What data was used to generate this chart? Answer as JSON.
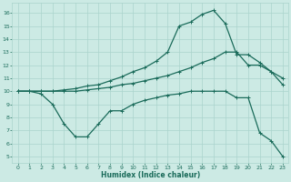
{
  "xlabel": "Humidex (Indice chaleur)",
  "bg_color": "#cceae4",
  "grid_color": "#aad4cc",
  "line_color": "#1a6b5a",
  "xlim": [
    -0.5,
    23.5
  ],
  "ylim": [
    4.5,
    16.8
  ],
  "yticks": [
    5,
    6,
    7,
    8,
    9,
    10,
    11,
    12,
    13,
    14,
    15,
    16
  ],
  "xticks": [
    0,
    1,
    2,
    3,
    4,
    5,
    6,
    7,
    8,
    9,
    10,
    11,
    12,
    13,
    14,
    15,
    16,
    17,
    18,
    19,
    20,
    21,
    22,
    23
  ],
  "line_top_x": [
    0,
    1,
    2,
    3,
    4,
    5,
    6,
    7,
    8,
    9,
    10,
    11,
    12,
    13,
    14,
    15,
    16,
    17,
    18,
    19,
    20,
    21,
    22,
    23
  ],
  "line_top_y": [
    10.0,
    10.0,
    10.0,
    10.0,
    10.1,
    10.2,
    10.4,
    10.5,
    10.8,
    11.1,
    11.5,
    11.8,
    12.3,
    13.0,
    15.0,
    15.3,
    15.9,
    16.2,
    15.2,
    12.8,
    12.8,
    12.2,
    11.5,
    10.5
  ],
  "line_mid_x": [
    0,
    1,
    2,
    3,
    4,
    5,
    6,
    7,
    8,
    9,
    10,
    11,
    12,
    13,
    14,
    15,
    16,
    17,
    18,
    19,
    20,
    21,
    22,
    23
  ],
  "line_mid_y": [
    10.0,
    10.0,
    10.0,
    10.0,
    10.0,
    10.0,
    10.1,
    10.2,
    10.3,
    10.5,
    10.6,
    10.8,
    11.0,
    11.2,
    11.5,
    11.8,
    12.2,
    12.5,
    13.0,
    13.0,
    12.0,
    12.0,
    11.5,
    11.0
  ],
  "line_bot_x": [
    0,
    1,
    2,
    3,
    4,
    5,
    6,
    7,
    8,
    9,
    10,
    11,
    12,
    13,
    14,
    15,
    16,
    17,
    18,
    19,
    20,
    21,
    22,
    23
  ],
  "line_bot_y": [
    10.0,
    10.0,
    9.8,
    9.0,
    7.5,
    6.5,
    6.5,
    7.5,
    8.5,
    8.5,
    9.0,
    9.3,
    9.5,
    9.7,
    9.8,
    10.0,
    10.0,
    10.0,
    10.0,
    9.5,
    9.5,
    6.8,
    6.2,
    5.0
  ]
}
